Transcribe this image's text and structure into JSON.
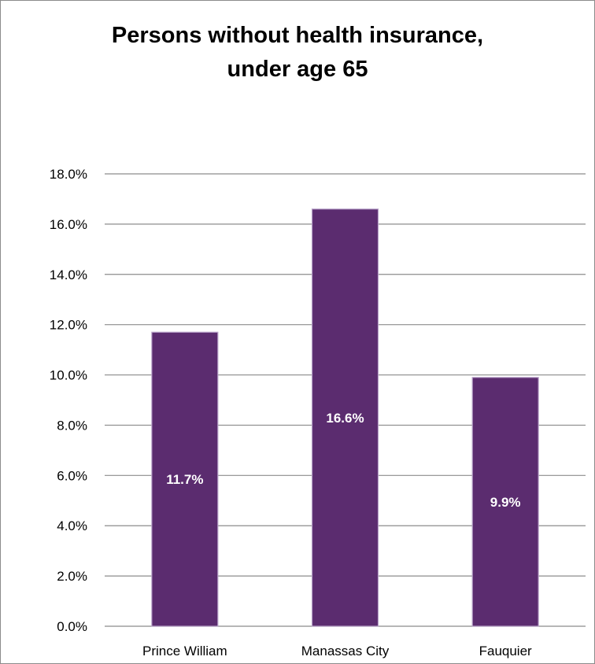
{
  "chart_data": {
    "type": "bar",
    "title_lines": [
      "Persons without health insurance,",
      "under age 65"
    ],
    "categories": [
      "Prince William",
      "Manassas City",
      "Fauquier"
    ],
    "values": [
      11.7,
      16.6,
      9.9
    ],
    "data_labels": [
      "11.7%",
      "16.6%",
      "9.9%"
    ],
    "ylim": [
      0,
      18
    ],
    "yticks": [
      0,
      2,
      4,
      6,
      8,
      10,
      12,
      14,
      16,
      18
    ],
    "ytick_labels": [
      "0.0%",
      "2.0%",
      "4.0%",
      "6.0%",
      "8.0%",
      "10.0%",
      "12.0%",
      "14.0%",
      "16.0%",
      "18.0%"
    ],
    "xlabel": "",
    "ylabel": "",
    "grid": true,
    "legend": "none",
    "bar_color": "#5b2c6f",
    "gridline_color": "#8c8c8c"
  }
}
